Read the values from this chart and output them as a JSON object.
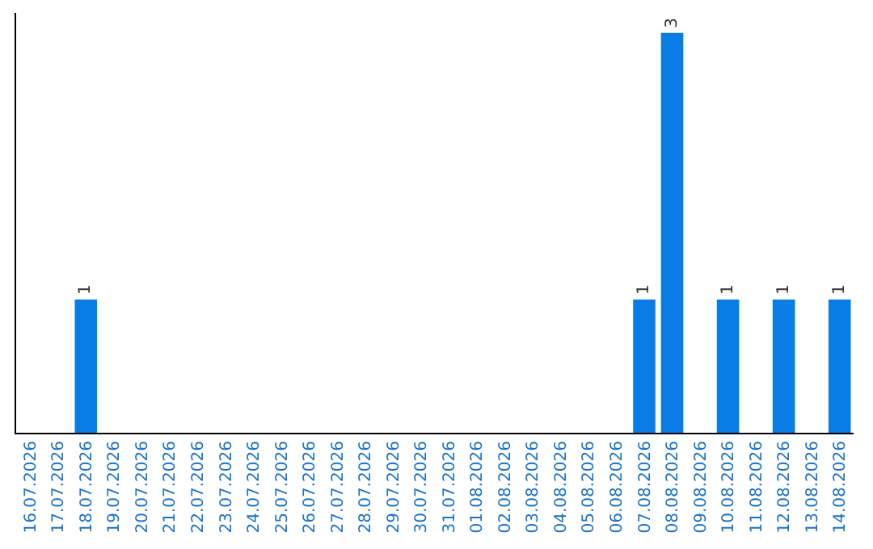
{
  "chart_data": {
    "type": "bar",
    "categories": [
      "16.07.2026",
      "17.07.2026",
      "18.07.2026",
      "19.07.2026",
      "20.07.2026",
      "21.07.2026",
      "22.07.2026",
      "23.07.2026",
      "24.07.2026",
      "25.07.2026",
      "26.07.2026",
      "27.07.2026",
      "28.07.2026",
      "29.07.2026",
      "30.07.2026",
      "31.07.2026",
      "01.08.2026",
      "02.08.2026",
      "03.08.2026",
      "04.08.2026",
      "05.08.2026",
      "06.08.2026",
      "07.08.2026",
      "08.08.2026",
      "09.08.2026",
      "10.08.2026",
      "11.08.2026",
      "12.08.2026",
      "13.08.2026",
      "14.08.2026"
    ],
    "values": [
      0,
      0,
      1,
      0,
      0,
      0,
      0,
      0,
      0,
      0,
      0,
      0,
      0,
      0,
      0,
      0,
      0,
      0,
      0,
      0,
      0,
      0,
      1,
      3,
      0,
      1,
      0,
      1,
      0,
      1
    ],
    "value_labels": [
      null,
      null,
      "1",
      null,
      null,
      null,
      null,
      null,
      null,
      null,
      null,
      null,
      null,
      null,
      null,
      null,
      null,
      null,
      null,
      null,
      null,
      null,
      "1",
      "3",
      null,
      "1",
      null,
      "1",
      null,
      "1"
    ],
    "color": "#0a7ce6",
    "ylim": [
      0,
      3.15
    ],
    "tick_labels": "x",
    "grid": false
  }
}
